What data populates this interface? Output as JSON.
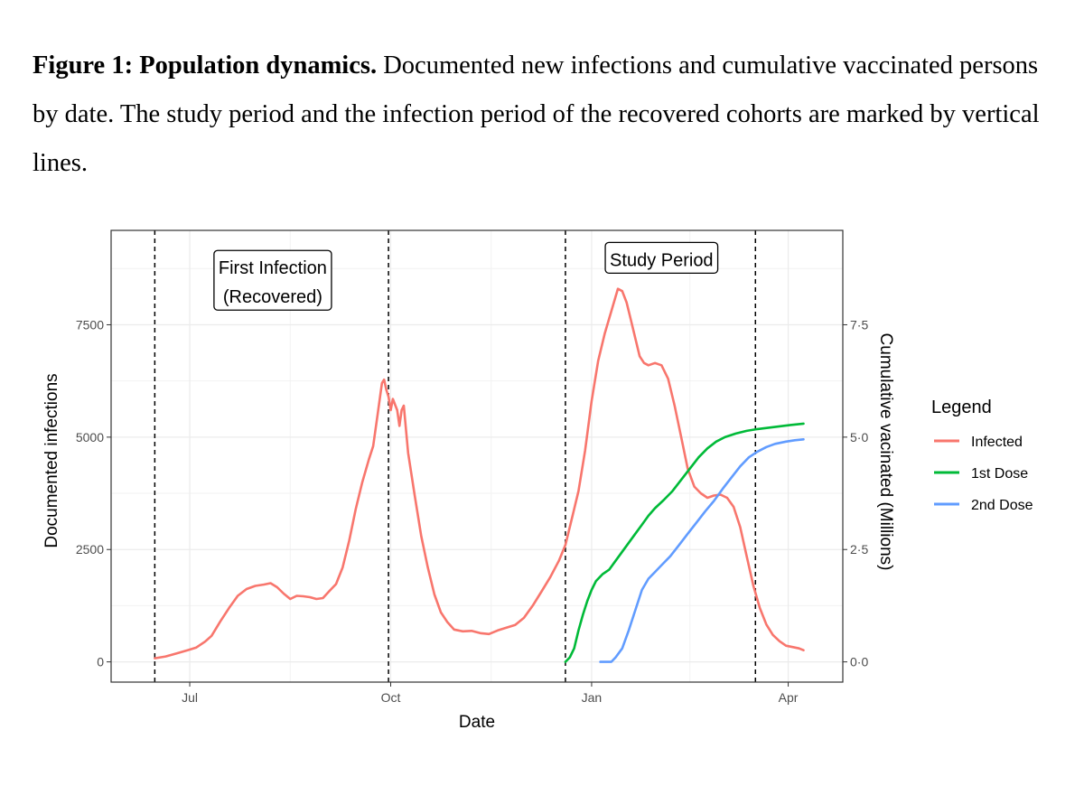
{
  "caption": {
    "label": "Figure 1: Population dynamics.",
    "text": " Documented new infections and cumulative vaccinated persons by date. The study period and the infection period of the recovered cohorts are marked by vertical lines."
  },
  "chart_data": {
    "type": "line",
    "xlabel": "Date",
    "ylabel": "Documented infections",
    "y2label": "Cumulative vacinated (Millions)",
    "x_ticks": [
      {
        "date": "2020-07-01",
        "label": "Jul"
      },
      {
        "date": "2020-10-01",
        "label": "Oct"
      },
      {
        "date": "2021-01-01",
        "label": "Jan"
      },
      {
        "date": "2021-04-01",
        "label": "Apr"
      }
    ],
    "xlim": [
      "2020-05-26",
      "2021-04-26"
    ],
    "y_ticks": [
      0,
      2500,
      5000,
      7500
    ],
    "ylim": [
      -450,
      9600
    ],
    "y2_ticks": [
      0,
      2.5,
      5.0,
      7.5
    ],
    "y2_tick_labels": [
      "0·0",
      "2·5",
      "5·0",
      "7·5"
    ],
    "y2lim": [
      -0.45,
      9.6
    ],
    "grid": true,
    "legend_title": "Legend",
    "legend_position": "right",
    "vlines": [
      "2020-06-15",
      "2020-09-30",
      "2020-12-20",
      "2021-03-17"
    ],
    "annotations": [
      {
        "text_lines": [
          "First Infection",
          "(Recovered)"
        ],
        "date": "2020-08-08",
        "y": 8450
      },
      {
        "text_lines": [
          "Study Period"
        ],
        "date": "2021-02-02",
        "y": 8950
      }
    ],
    "series": [
      {
        "name": "Infected",
        "color": "#F8766D",
        "axis": "left",
        "points": [
          [
            "2020-06-15",
            80
          ],
          [
            "2020-06-20",
            120
          ],
          [
            "2020-06-25",
            190
          ],
          [
            "2020-06-30",
            260
          ],
          [
            "2020-07-04",
            320
          ],
          [
            "2020-07-08",
            450
          ],
          [
            "2020-07-11",
            580
          ],
          [
            "2020-07-15",
            900
          ],
          [
            "2020-07-19",
            1200
          ],
          [
            "2020-07-23",
            1470
          ],
          [
            "2020-07-27",
            1620
          ],
          [
            "2020-07-31",
            1690
          ],
          [
            "2020-08-04",
            1720
          ],
          [
            "2020-08-07",
            1750
          ],
          [
            "2020-08-10",
            1660
          ],
          [
            "2020-08-13",
            1520
          ],
          [
            "2020-08-16",
            1400
          ],
          [
            "2020-08-19",
            1470
          ],
          [
            "2020-08-22",
            1460
          ],
          [
            "2020-08-25",
            1440
          ],
          [
            "2020-08-28",
            1400
          ],
          [
            "2020-08-31",
            1420
          ],
          [
            "2020-09-03",
            1580
          ],
          [
            "2020-09-06",
            1730
          ],
          [
            "2020-09-09",
            2100
          ],
          [
            "2020-09-12",
            2700
          ],
          [
            "2020-09-15",
            3400
          ],
          [
            "2020-09-18",
            4000
          ],
          [
            "2020-09-21",
            4500
          ],
          [
            "2020-09-23",
            4800
          ],
          [
            "2020-09-25",
            5500
          ],
          [
            "2020-09-27",
            6200
          ],
          [
            "2020-09-28",
            6280
          ],
          [
            "2020-09-29",
            6050
          ],
          [
            "2020-09-30",
            5900
          ],
          [
            "2020-10-01",
            5600
          ],
          [
            "2020-10-02",
            5850
          ],
          [
            "2020-10-04",
            5600
          ],
          [
            "2020-10-05",
            5250
          ],
          [
            "2020-10-06",
            5600
          ],
          [
            "2020-10-07",
            5700
          ],
          [
            "2020-10-09",
            4650
          ],
          [
            "2020-10-12",
            3700
          ],
          [
            "2020-10-15",
            2800
          ],
          [
            "2020-10-18",
            2100
          ],
          [
            "2020-10-21",
            1500
          ],
          [
            "2020-10-24",
            1100
          ],
          [
            "2020-10-27",
            880
          ],
          [
            "2020-10-30",
            720
          ],
          [
            "2020-11-03",
            680
          ],
          [
            "2020-11-07",
            690
          ],
          [
            "2020-11-11",
            640
          ],
          [
            "2020-11-15",
            620
          ],
          [
            "2020-11-19",
            700
          ],
          [
            "2020-11-23",
            760
          ],
          [
            "2020-11-27",
            820
          ],
          [
            "2020-12-01",
            980
          ],
          [
            "2020-12-05",
            1250
          ],
          [
            "2020-12-09",
            1560
          ],
          [
            "2020-12-13",
            1880
          ],
          [
            "2020-12-17",
            2250
          ],
          [
            "2020-12-20",
            2600
          ],
          [
            "2020-12-23",
            3200
          ],
          [
            "2020-12-26",
            3800
          ],
          [
            "2020-12-29",
            4700
          ],
          [
            "2021-01-01",
            5800
          ],
          [
            "2021-01-04",
            6700
          ],
          [
            "2021-01-07",
            7300
          ],
          [
            "2021-01-10",
            7800
          ],
          [
            "2021-01-13",
            8300
          ],
          [
            "2021-01-15",
            8250
          ],
          [
            "2021-01-17",
            8000
          ],
          [
            "2021-01-19",
            7600
          ],
          [
            "2021-01-21",
            7200
          ],
          [
            "2021-01-23",
            6800
          ],
          [
            "2021-01-25",
            6650
          ],
          [
            "2021-01-27",
            6600
          ],
          [
            "2021-01-30",
            6650
          ],
          [
            "2021-02-02",
            6600
          ],
          [
            "2021-02-05",
            6300
          ],
          [
            "2021-02-08",
            5700
          ],
          [
            "2021-02-11",
            5000
          ],
          [
            "2021-02-14",
            4300
          ],
          [
            "2021-02-17",
            3900
          ],
          [
            "2021-02-20",
            3750
          ],
          [
            "2021-02-23",
            3650
          ],
          [
            "2021-02-26",
            3700
          ],
          [
            "2021-03-01",
            3720
          ],
          [
            "2021-03-04",
            3650
          ],
          [
            "2021-03-07",
            3450
          ],
          [
            "2021-03-10",
            3000
          ],
          [
            "2021-03-13",
            2350
          ],
          [
            "2021-03-16",
            1700
          ],
          [
            "2021-03-19",
            1200
          ],
          [
            "2021-03-22",
            830
          ],
          [
            "2021-03-25",
            600
          ],
          [
            "2021-03-28",
            460
          ],
          [
            "2021-03-31",
            360
          ],
          [
            "2021-04-03",
            330
          ],
          [
            "2021-04-06",
            300
          ],
          [
            "2021-04-08",
            260
          ]
        ]
      },
      {
        "name": "1st Dose",
        "color": "#00BA38",
        "axis": "right",
        "points": [
          [
            "2020-12-20",
            0.0
          ],
          [
            "2020-12-22",
            0.1
          ],
          [
            "2020-12-24",
            0.3
          ],
          [
            "2020-12-26",
            0.7
          ],
          [
            "2020-12-28",
            1.05
          ],
          [
            "2020-12-30",
            1.35
          ],
          [
            "2021-01-01",
            1.6
          ],
          [
            "2021-01-03",
            1.8
          ],
          [
            "2021-01-06",
            1.95
          ],
          [
            "2021-01-09",
            2.05
          ],
          [
            "2021-01-12",
            2.25
          ],
          [
            "2021-01-15",
            2.45
          ],
          [
            "2021-01-18",
            2.65
          ],
          [
            "2021-01-21",
            2.85
          ],
          [
            "2021-01-24",
            3.05
          ],
          [
            "2021-01-27",
            3.25
          ],
          [
            "2021-01-30",
            3.42
          ],
          [
            "2021-02-03",
            3.6
          ],
          [
            "2021-02-07",
            3.8
          ],
          [
            "2021-02-11",
            4.05
          ],
          [
            "2021-02-15",
            4.3
          ],
          [
            "2021-02-19",
            4.55
          ],
          [
            "2021-02-23",
            4.75
          ],
          [
            "2021-02-27",
            4.9
          ],
          [
            "2021-03-03",
            5.0
          ],
          [
            "2021-03-08",
            5.08
          ],
          [
            "2021-03-13",
            5.14
          ],
          [
            "2021-03-18",
            5.18
          ],
          [
            "2021-03-23",
            5.21
          ],
          [
            "2021-03-28",
            5.24
          ],
          [
            "2021-04-02",
            5.27
          ],
          [
            "2021-04-08",
            5.3
          ]
        ]
      },
      {
        "name": "2nd Dose",
        "color": "#619CFF",
        "axis": "right",
        "points": [
          [
            "2021-01-05",
            0.0
          ],
          [
            "2021-01-10",
            0.0
          ],
          [
            "2021-01-12",
            0.1
          ],
          [
            "2021-01-15",
            0.3
          ],
          [
            "2021-01-18",
            0.7
          ],
          [
            "2021-01-21",
            1.15
          ],
          [
            "2021-01-24",
            1.6
          ],
          [
            "2021-01-27",
            1.85
          ],
          [
            "2021-01-30",
            2.0
          ],
          [
            "2021-02-02",
            2.15
          ],
          [
            "2021-02-06",
            2.35
          ],
          [
            "2021-02-10",
            2.6
          ],
          [
            "2021-02-14",
            2.85
          ],
          [
            "2021-02-18",
            3.1
          ],
          [
            "2021-02-22",
            3.35
          ],
          [
            "2021-02-26",
            3.58
          ],
          [
            "2021-03-02",
            3.85
          ],
          [
            "2021-03-06",
            4.1
          ],
          [
            "2021-03-10",
            4.35
          ],
          [
            "2021-03-14",
            4.55
          ],
          [
            "2021-03-18",
            4.68
          ],
          [
            "2021-03-22",
            4.78
          ],
          [
            "2021-03-26",
            4.85
          ],
          [
            "2021-03-31",
            4.9
          ],
          [
            "2021-04-04",
            4.93
          ],
          [
            "2021-04-08",
            4.95
          ]
        ]
      }
    ]
  }
}
